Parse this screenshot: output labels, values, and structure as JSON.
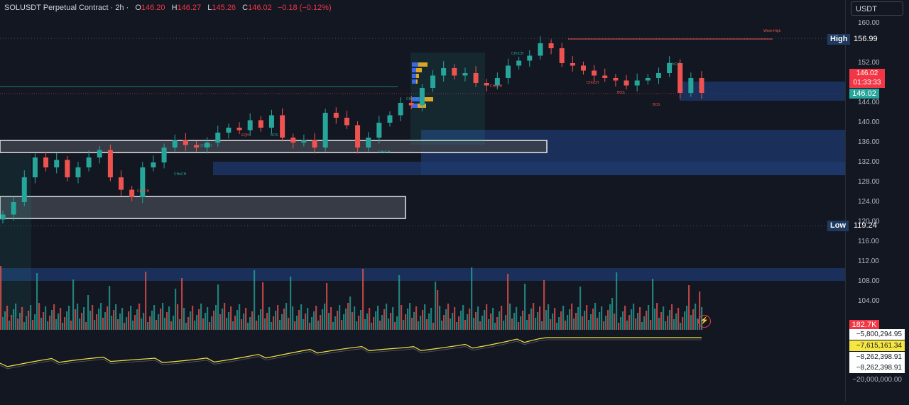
{
  "header": {
    "symbol": "SOLUSDT Perpetual Contract · 2h · ",
    "o_label": "O",
    "o": "146.20",
    "h_label": "H",
    "h": "146.27",
    "l_label": "L",
    "l": "145.26",
    "c_label": "C",
    "c": "146.02",
    "change": "−0.18 (−0.12%)"
  },
  "currency": "USDT",
  "price_axis": {
    "ticks": [
      "160.00",
      "156.00",
      "152.00",
      "148.00",
      "144.00",
      "140.00",
      "136.00",
      "132.00",
      "128.00",
      "124.00",
      "120.00",
      "116.00",
      "112.00",
      "108.00",
      "104.00"
    ]
  },
  "high": {
    "label": "High",
    "value": "156.99"
  },
  "low": {
    "label": "Low",
    "value": "119.24"
  },
  "last_price": {
    "price": "146.02",
    "countdown": "01:33:33",
    "mark": "146.02"
  },
  "volume_label": "182.7K",
  "indicator_values": [
    "−5,800,294.95",
    "−7,615,161.34",
    "−8,262,398.91",
    "−8,262,398.91",
    "−20,000,000.00"
  ],
  "annotations": [
    "Week High",
    "CHoCH",
    "CHoCH",
    "CHoCH",
    "CHoCH",
    "CHoCH",
    "CHoCH",
    "BOS",
    "BOS",
    "EQH",
    "BOS",
    "CHoCH",
    "CHoCH",
    "CHoCH"
  ],
  "colors": {
    "up": "#26a69a",
    "down": "#ef5350",
    "zone": "#1e3a6e",
    "yellow": "#f5e642"
  },
  "chart_data": {
    "type": "candlestick",
    "interval": "2h",
    "ylim": [
      100,
      162
    ],
    "high": 156.99,
    "low": 119.24,
    "close_sample": [
      121.5,
      124,
      129,
      133,
      131,
      132.5,
      129,
      131,
      133,
      134.5,
      129,
      126.5,
      125,
      131,
      132,
      135,
      136.5,
      135.5,
      135,
      136,
      138,
      139,
      138.5,
      140.5,
      139,
      141.5,
      137,
      136,
      136.5,
      135,
      142,
      141,
      139.5,
      135,
      137,
      140,
      141.5,
      144,
      143.5,
      147,
      149.5,
      151,
      149.5,
      150,
      148,
      147.5,
      149,
      151.5,
      152.5,
      153.5,
      156,
      155,
      152,
      151.5,
      150.5,
      149.5,
      149,
      148.5,
      147.5,
      148.5,
      149,
      150,
      152,
      146,
      149,
      146
    ]
  }
}
